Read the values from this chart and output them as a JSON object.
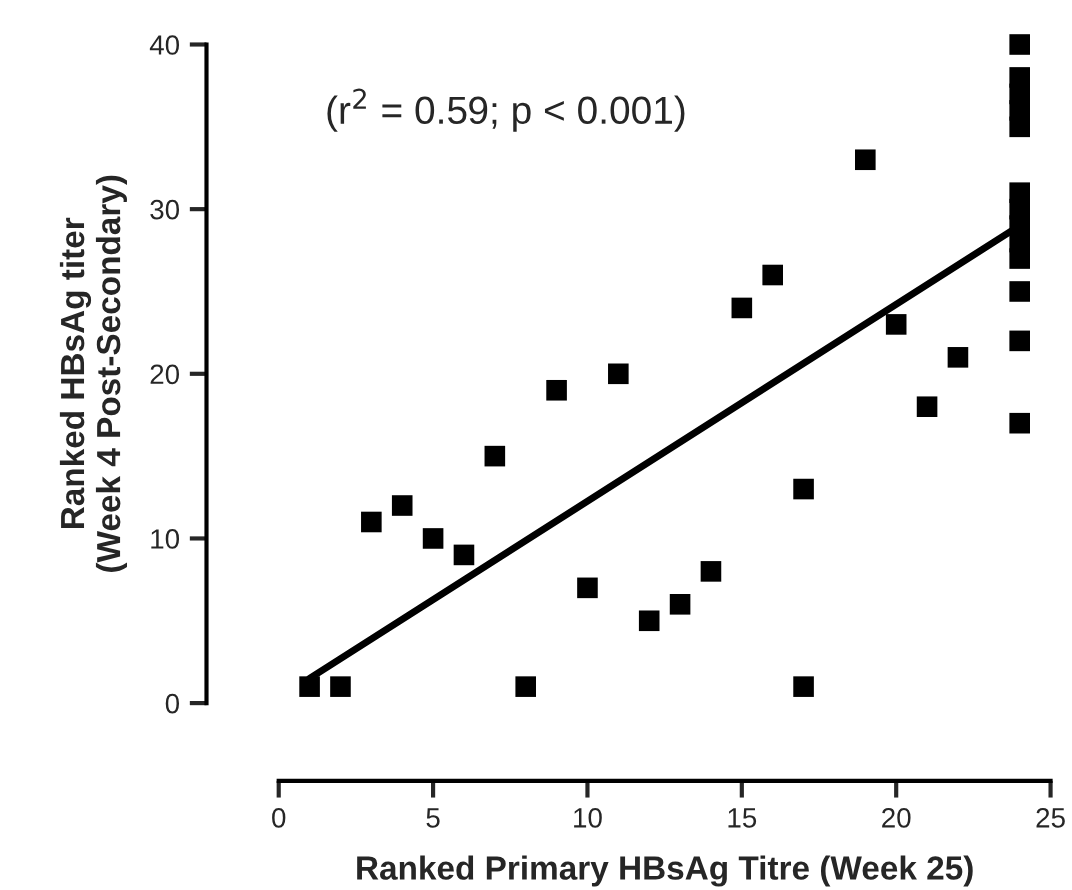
{
  "chart_data": {
    "type": "scatter",
    "xlabel": "Ranked Primary HBsAg Titre (Week 25)",
    "ylabel": "Ranked HBsAg titer\n(Week 4 Post-Secondary)",
    "annotations": [
      "(r$^{2}$ = 0.59; p < 0.001)"
    ],
    "series": [
      {
        "color": "#000000",
        "marker": "square",
        "x": [
          1,
          2,
          3,
          4,
          5,
          6,
          7,
          8,
          9,
          10,
          11,
          12,
          13,
          14,
          15,
          16,
          17,
          17,
          19,
          20,
          21,
          22,
          24,
          24,
          24,
          24,
          24,
          24,
          24,
          24,
          24,
          24,
          24,
          24,
          24
        ],
        "values": [
          1,
          1,
          11,
          12,
          10,
          9,
          15,
          1,
          19,
          7,
          20,
          5,
          6,
          8,
          24,
          26,
          13,
          1,
          33,
          23,
          18,
          21,
          40,
          38,
          37,
          36,
          35,
          31,
          30,
          29,
          28,
          27,
          25,
          22,
          17
        ]
      },
      {
        "type": "line",
        "color": "#000000",
        "marker": "none",
        "x": [
          1,
          24
        ],
        "values": [
          1.5,
          29
        ]
      }
    ],
    "xlim": [
      0,
      25
    ],
    "ylim": [
      0,
      40
    ],
    "xticks": [
      0,
      5,
      10,
      15,
      20,
      25
    ],
    "yticks": [
      0,
      10,
      20,
      30,
      40
    ],
    "grid": false,
    "legend": false
  }
}
